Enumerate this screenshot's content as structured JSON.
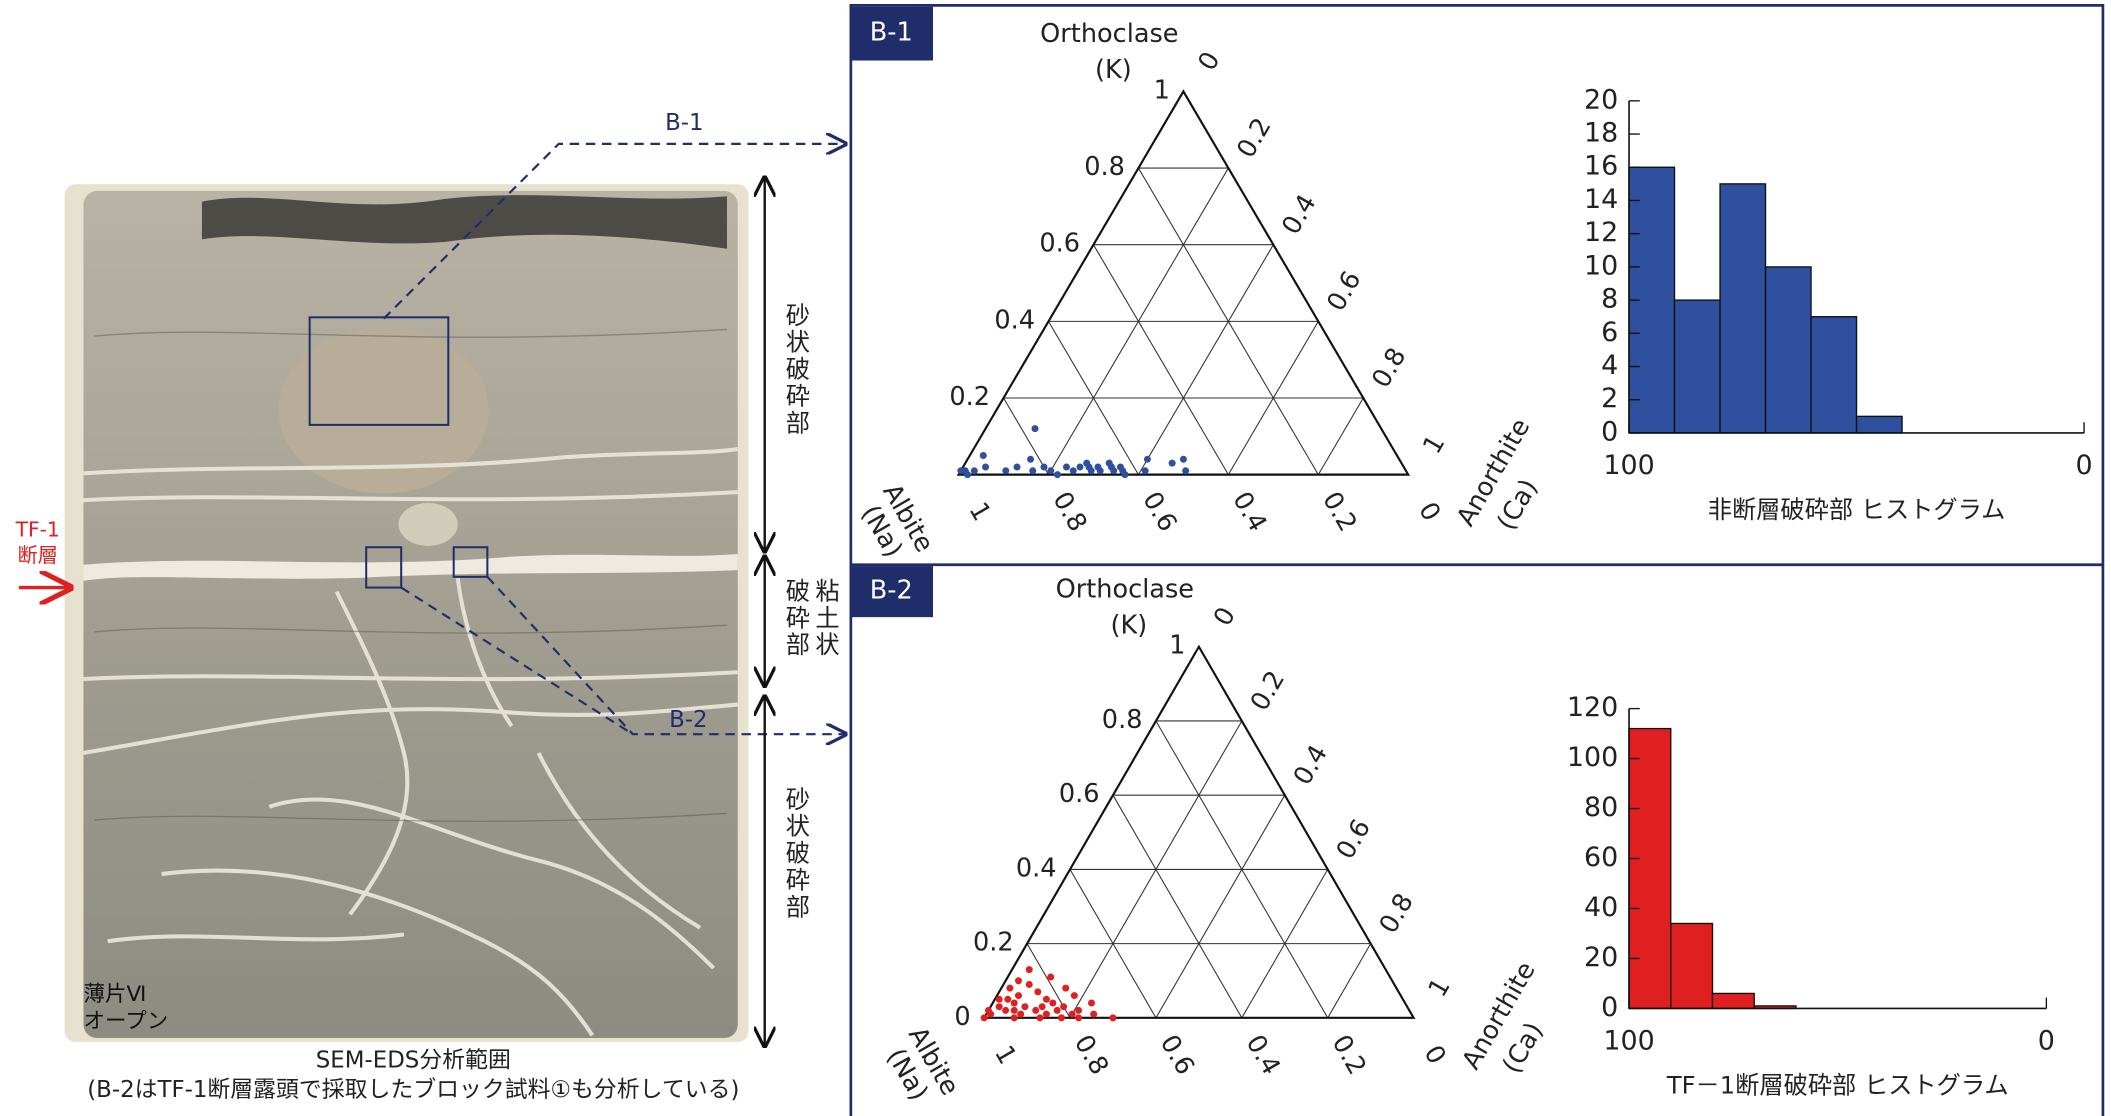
{
  "chart_data": [
    {
      "type": "ternary",
      "panel_label": "B-1",
      "top_label": "Orthoclase",
      "top_sub": "(K)",
      "left_label": "Albite",
      "left_sub": "(Na)",
      "right_label": "Anorthite",
      "right_sub": "(Ca)",
      "k_ticks": [
        0.2,
        0.4,
        0.6,
        0.8,
        1
      ],
      "ca_ticks": [
        0,
        0.2,
        0.4,
        0.6,
        0.8,
        1
      ],
      "na_ticks": [
        1,
        0.8,
        0.6,
        0.4,
        0.2,
        0
      ],
      "color": "#2f4f9f",
      "series": {
        "orthoclase": [
          0.01,
          0.01,
          0.0,
          0.01,
          0.02,
          0.05,
          0.01,
          0.02,
          0.12,
          0.04,
          0.01,
          0.02,
          0.01,
          0.0,
          0.02,
          0.01,
          0.02,
          0.03,
          0.02,
          0.01,
          0.02,
          0.01,
          0.03,
          0.02,
          0.01,
          0.02,
          0.01,
          0.0,
          0.04,
          0.01,
          0.03,
          0.04,
          0.01
        ],
        "anorthite": [
          0.0,
          0.01,
          0.02,
          0.03,
          0.05,
          0.03,
          0.1,
          0.12,
          0.11,
          0.14,
          0.16,
          0.18,
          0.2,
          0.22,
          0.23,
          0.25,
          0.26,
          0.27,
          0.28,
          0.29,
          0.3,
          0.31,
          0.32,
          0.33,
          0.34,
          0.35,
          0.36,
          0.37,
          0.4,
          0.41,
          0.46,
          0.48,
          0.5
        ]
      }
    },
    {
      "type": "histogram",
      "xlabel": "非断層破砕部 ヒストグラム",
      "bins": [
        100,
        90,
        80,
        70,
        60,
        50,
        40
      ],
      "values": [
        16,
        8,
        15,
        10,
        7,
        1
      ],
      "color": "#2f4f9f",
      "xlim": [
        100,
        0
      ],
      "xticks": [
        100,
        0
      ],
      "ylim": [
        0,
        20
      ],
      "yticks": [
        0,
        2,
        4,
        6,
        8,
        10,
        12,
        14,
        16,
        18,
        20
      ]
    },
    {
      "type": "ternary",
      "panel_label": "B-2",
      "top_label": "Orthoclase",
      "top_sub": "(K)",
      "left_label": "Albite",
      "left_sub": "(Na)",
      "right_label": "Anorthite",
      "right_sub": "(Ca)",
      "k_ticks": [
        0,
        0.2,
        0.4,
        0.6,
        0.8,
        1
      ],
      "ca_ticks": [
        0,
        0.2,
        0.4,
        0.6,
        0.8,
        1
      ],
      "na_ticks": [
        1,
        0.8,
        0.6,
        0.4,
        0.2,
        0
      ],
      "color": "#e02020",
      "series": {
        "orthoclase": [
          0.0,
          0.01,
          0.02,
          0.03,
          0.05,
          0.08,
          0.1,
          0.13,
          0.02,
          0.04,
          0.06,
          0.09,
          0.0,
          0.01,
          0.03,
          0.07,
          0.11,
          0.02,
          0.05,
          0.0,
          0.01,
          0.04,
          0.08,
          0.02,
          0.03,
          0.0,
          0.06,
          0.01,
          0.02,
          0.0,
          0.04,
          0.01,
          0.03,
          0.02,
          0.05,
          0.0
        ],
        "anorthite": [
          0.0,
          0.01,
          0.0,
          0.02,
          0.01,
          0.02,
          0.03,
          0.04,
          0.04,
          0.05,
          0.05,
          0.06,
          0.07,
          0.08,
          0.08,
          0.09,
          0.1,
          0.11,
          0.12,
          0.13,
          0.14,
          0.14,
          0.15,
          0.16,
          0.17,
          0.18,
          0.18,
          0.2,
          0.21,
          0.22,
          0.23,
          0.25,
          0.12,
          0.06,
          0.03,
          0.3
        ]
      }
    },
    {
      "type": "histogram",
      "xlabel": "TF－1断層破砕部 ヒストグラム",
      "bins": [
        100,
        90,
        80,
        70,
        60
      ],
      "values": [
        112,
        34,
        6,
        1
      ],
      "color": "#e02020",
      "xlim": [
        100,
        0
      ],
      "xticks": [
        100,
        0
      ],
      "ylim": [
        0,
        120
      ],
      "yticks": [
        0,
        20,
        40,
        60,
        80,
        100,
        120
      ]
    }
  ],
  "core_panel": {
    "arrow_labels": [
      "B-1",
      "B-2"
    ],
    "zones": [
      "砂状破砕部",
      "粘土状",
      "破砕部",
      "砂状破砕部"
    ],
    "fault_label": [
      "TF-1",
      "断層"
    ],
    "sample_label": [
      "薄片Ⅵ",
      "オープン"
    ],
    "caption": [
      "SEM-EDS分析範囲",
      "(B-2はTF-1断層露頭で採取したブロック試料①も分析している)"
    ]
  }
}
